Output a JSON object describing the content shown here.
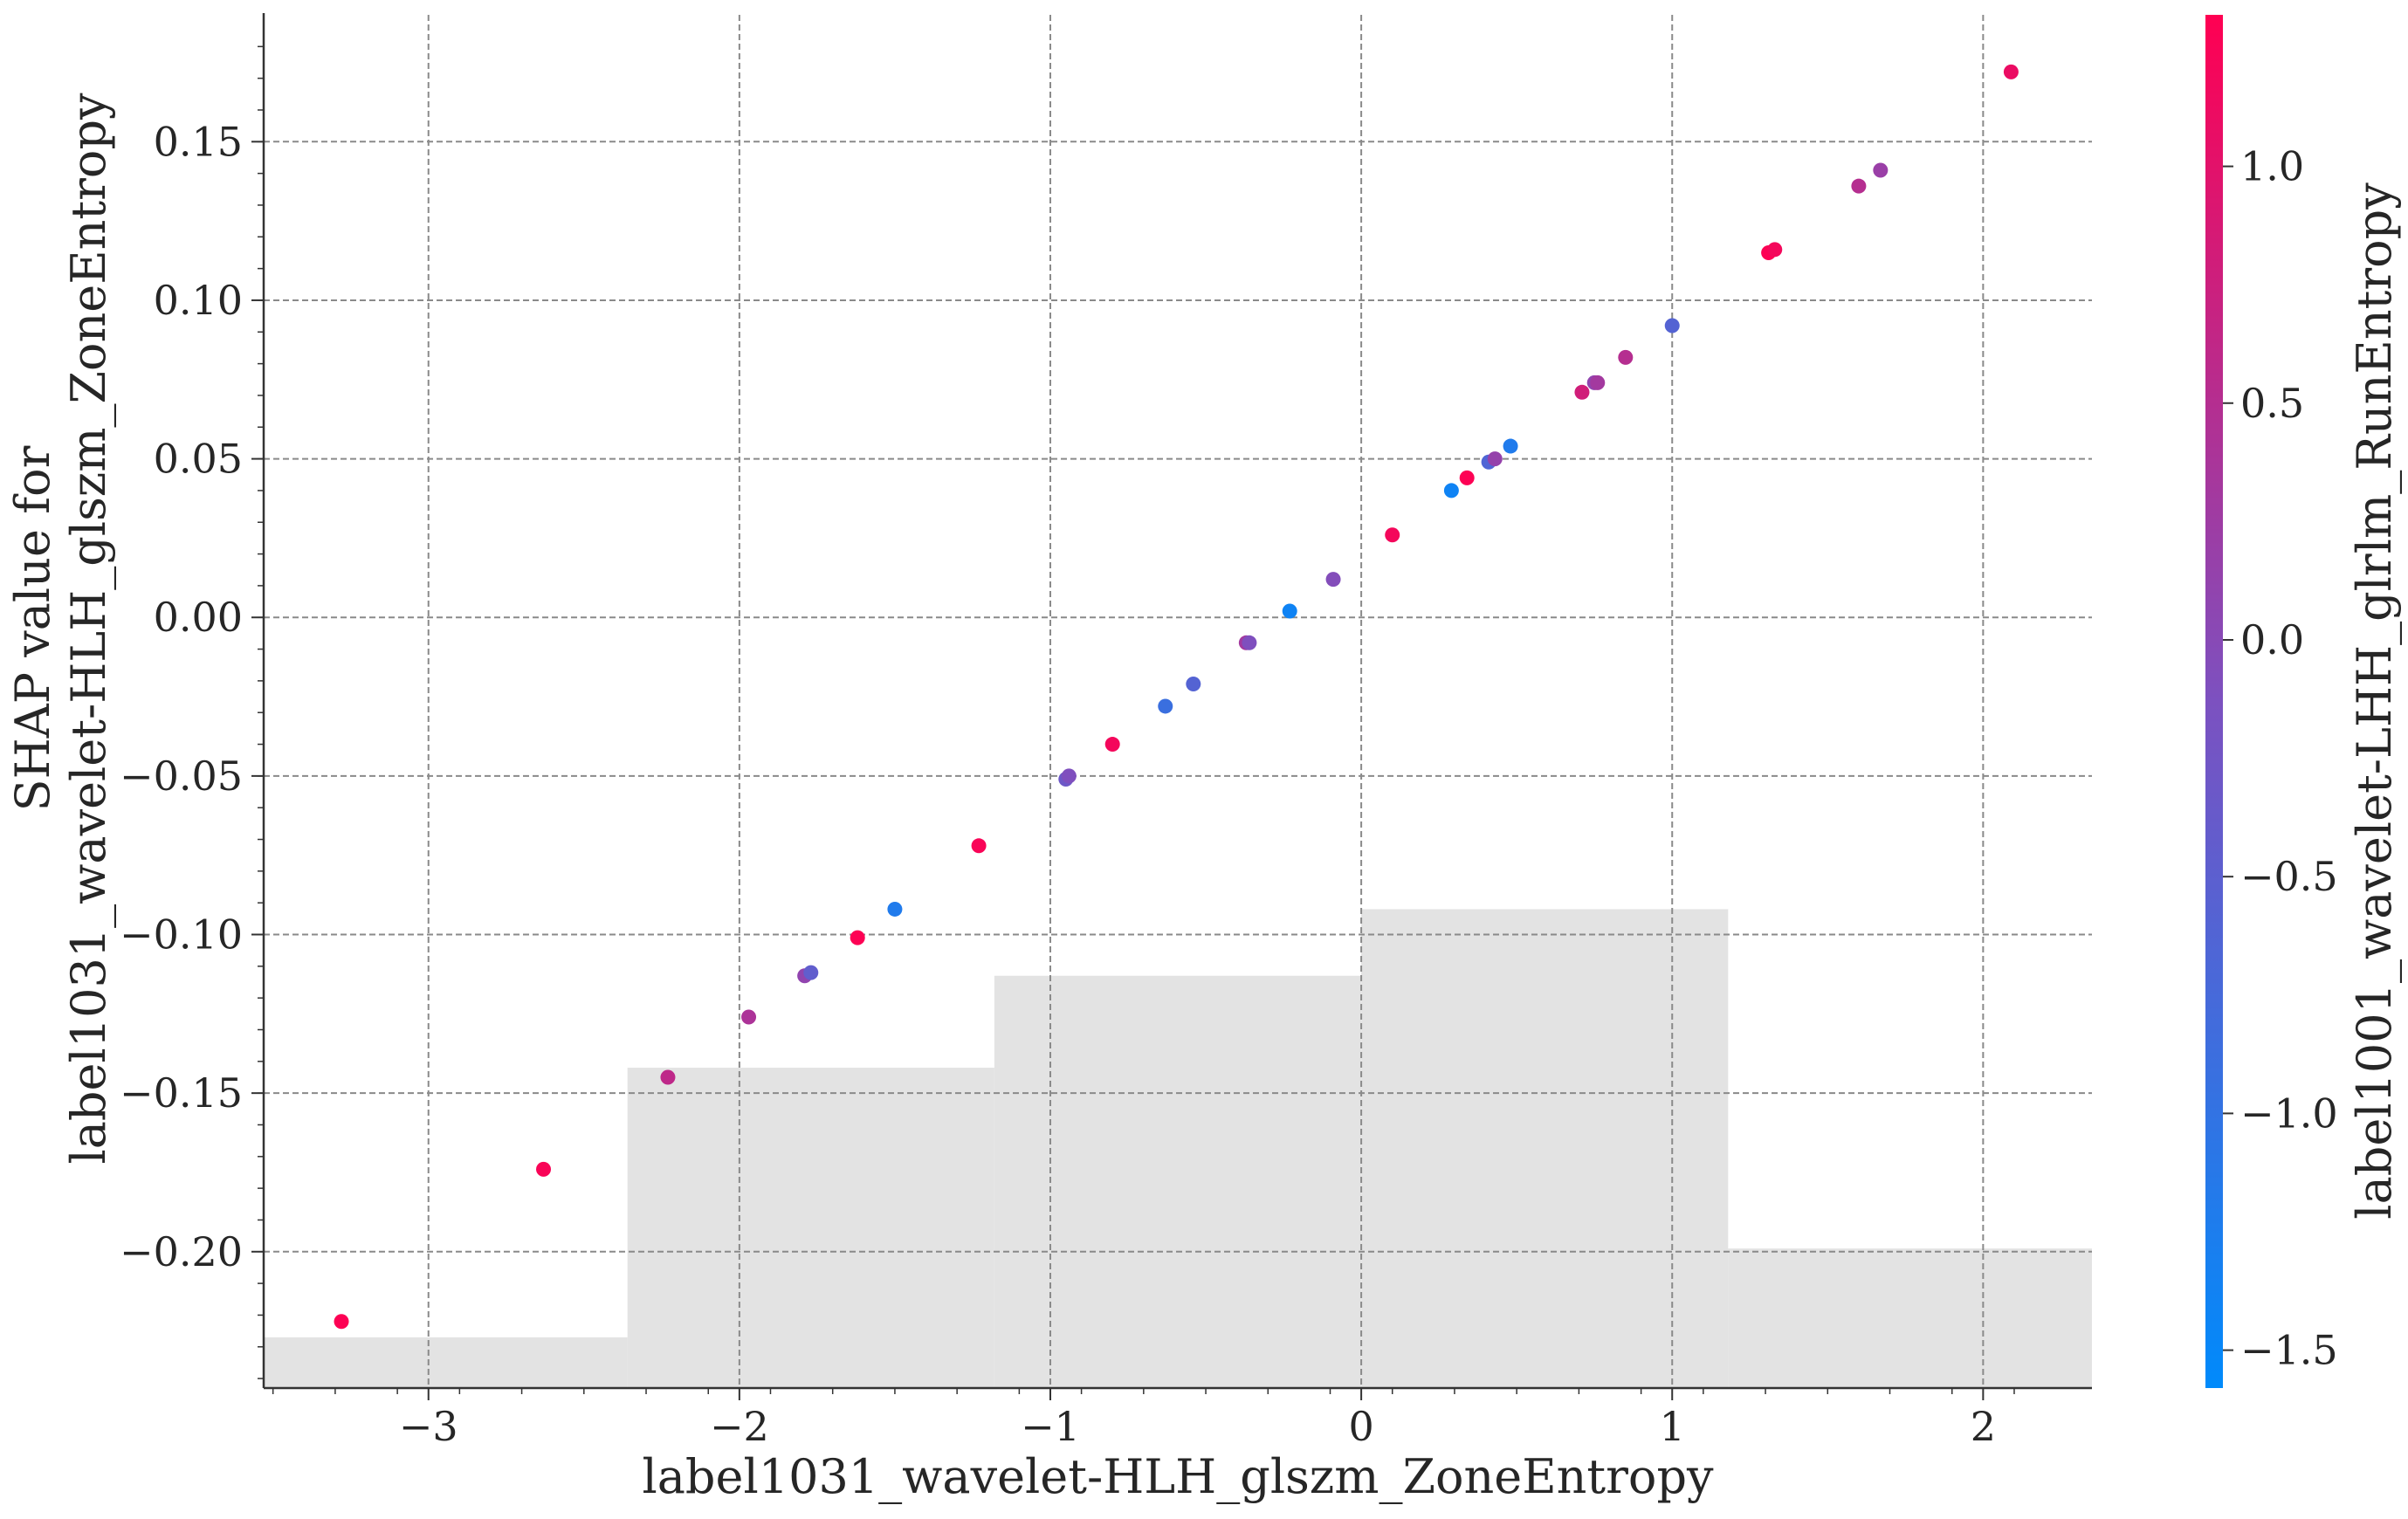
{
  "chart_data": {
    "type": "scatter",
    "xlabel": "label1031_wavelet-HLH_glszm_ZoneEntropy",
    "ylabel_lines": [
      "SHAP value for",
      "label1031_wavelet-HLH_glszm_ZoneEntropy"
    ],
    "xlim": [
      -3.53,
      2.35
    ],
    "ylim": [
      -0.243,
      0.19
    ],
    "x_ticks": [
      -3,
      -2,
      -1,
      0,
      1,
      2
    ],
    "x_tick_labels": [
      "−3",
      "−2",
      "−1",
      "0",
      "1",
      "2"
    ],
    "y_ticks": [
      0.15,
      0.1,
      0.05,
      0.0,
      -0.05,
      -0.1,
      -0.15,
      -0.2
    ],
    "y_tick_labels": [
      "0.15",
      "0.10",
      "0.05",
      "0.00",
      "−0.05",
      "−0.10",
      "−0.15",
      "−0.20"
    ],
    "grid": true,
    "histogram": {
      "description_of_bins": "background feature-distribution histogram (grey bars)",
      "bins": [
        {
          "x0": -3.53,
          "x1": -2.36,
          "top": -0.227
        },
        {
          "x0": -2.36,
          "x1": -1.18,
          "top": -0.142
        },
        {
          "x0": -1.18,
          "x1": 0.0,
          "top": -0.113
        },
        {
          "x0": 0.0,
          "x1": 1.18,
          "top": -0.092
        },
        {
          "x0": 1.18,
          "x1": 2.35,
          "top": -0.199
        }
      ],
      "color": "#e3e3e3"
    },
    "points": [
      {
        "x": -3.28,
        "y": -0.222,
        "c": 1.3
      },
      {
        "x": -2.63,
        "y": -0.174,
        "c": 1.25
      },
      {
        "x": -2.23,
        "y": -0.145,
        "c": 0.6
      },
      {
        "x": -1.97,
        "y": -0.126,
        "c": 0.4
      },
      {
        "x": -1.79,
        "y": -0.113,
        "c": 0.1
      },
      {
        "x": -1.77,
        "y": -0.112,
        "c": -0.45
      },
      {
        "x": -1.62,
        "y": -0.101,
        "c": 1.3
      },
      {
        "x": -1.5,
        "y": -0.092,
        "c": -1.2
      },
      {
        "x": -1.23,
        "y": -0.072,
        "c": 1.25
      },
      {
        "x": -0.95,
        "y": -0.051,
        "c": -0.3
      },
      {
        "x": -0.94,
        "y": -0.05,
        "c": -0.1
      },
      {
        "x": -0.8,
        "y": -0.04,
        "c": 1.2
      },
      {
        "x": -0.63,
        "y": -0.028,
        "c": -0.9
      },
      {
        "x": -0.54,
        "y": -0.021,
        "c": -0.6
      },
      {
        "x": -0.37,
        "y": -0.008,
        "c": 0.3
      },
      {
        "x": -0.36,
        "y": -0.008,
        "c": -0.1
      },
      {
        "x": -0.23,
        "y": 0.002,
        "c": -1.4
      },
      {
        "x": -0.09,
        "y": 0.012,
        "c": -0.05
      },
      {
        "x": 0.1,
        "y": 0.026,
        "c": 1.2
      },
      {
        "x": 0.29,
        "y": 0.04,
        "c": -1.4
      },
      {
        "x": 0.34,
        "y": 0.044,
        "c": 1.3
      },
      {
        "x": 0.41,
        "y": 0.049,
        "c": -0.65
      },
      {
        "x": 0.43,
        "y": 0.05,
        "c": 0.15
      },
      {
        "x": 0.48,
        "y": 0.054,
        "c": -1.2
      },
      {
        "x": 0.71,
        "y": 0.071,
        "c": 0.8
      },
      {
        "x": 0.75,
        "y": 0.074,
        "c": 0.1
      },
      {
        "x": 0.76,
        "y": 0.074,
        "c": 0.3
      },
      {
        "x": 0.85,
        "y": 0.082,
        "c": 0.5
      },
      {
        "x": 1.0,
        "y": 0.092,
        "c": -0.6
      },
      {
        "x": 1.31,
        "y": 0.115,
        "c": 1.3
      },
      {
        "x": 1.33,
        "y": 0.116,
        "c": 1.2
      },
      {
        "x": 1.6,
        "y": 0.136,
        "c": 0.5
      },
      {
        "x": 1.67,
        "y": 0.141,
        "c": 0.2
      },
      {
        "x": 2.09,
        "y": 0.172,
        "c": 1.1
      }
    ],
    "colorbar": {
      "label": "label1001_wavelet-LHH_glrlm_RunEntropy",
      "range": [
        -1.58,
        1.32
      ],
      "ticks": [
        1.0,
        0.5,
        0.0,
        -0.5,
        -1.0,
        -1.5
      ],
      "tick_labels": [
        "1.0",
        "0.5",
        "0.0",
        "−0.5",
        "−1.0",
        "−1.5"
      ],
      "color_low": "#008afb",
      "color_mid": "#7c51c0",
      "color_high": "#ff0052"
    }
  }
}
